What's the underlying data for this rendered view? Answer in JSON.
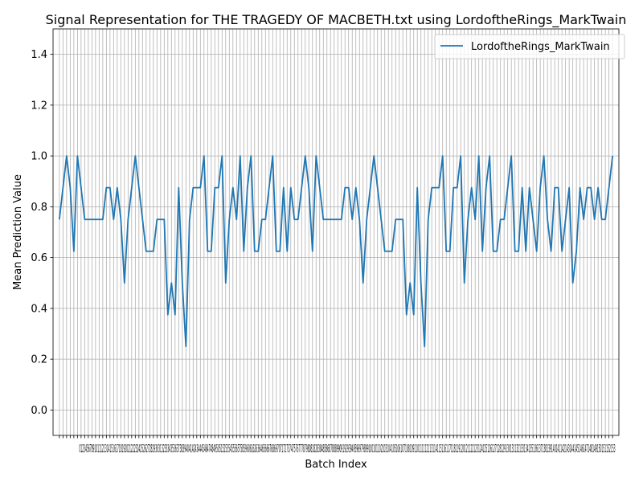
{
  "chart_data": {
    "type": "line",
    "title": "Signal Representation for THE TRAGEDY OF MACBETH.txt using LordoftheRings_MarkTwain",
    "xlabel": "Batch Index",
    "ylabel": "Mean Prediction Value",
    "ylim": [
      -0.1,
      1.5
    ],
    "xlim": [
      -1.75,
      154.75
    ],
    "yticks": [
      "0.0",
      "0.2",
      "0.4",
      "0.6",
      "0.8",
      "1.0",
      "1.2",
      "1.4"
    ],
    "grid": true,
    "legend_position": "top-right",
    "x_tick_label_text": "0123456789101112131415161718192021222324252627282930313233343536373839404142434445464748495051525354555657585960616263646566676869707172737475767778798081828384858687888990919293949596979899100101102103104105106107108109110111112113114115116117118119120121122123124125126127128129130131132133134135136137138139140141142143144145146147148149150151152153",
    "series": [
      {
        "name": "LordoftheRings_MarkTwain",
        "color": "#1f77b4",
        "x_start": 0,
        "values": [
          0.75,
          0.875,
          1.0,
          0.875,
          0.625,
          1.0,
          0.875,
          0.75,
          0.75,
          0.75,
          0.75,
          0.75,
          0.75,
          0.875,
          0.875,
          0.75,
          0.875,
          0.75,
          0.5,
          0.75,
          0.875,
          1.0,
          0.875,
          0.75,
          0.625,
          0.625,
          0.625,
          0.75,
          0.75,
          0.75,
          0.375,
          0.5,
          0.375,
          0.875,
          0.5,
          0.25,
          0.75,
          0.875,
          0.875,
          0.875,
          1.0,
          0.625,
          0.625,
          0.875,
          0.875,
          1.0,
          0.5,
          0.75,
          0.875,
          0.75,
          1.0,
          0.625,
          0.875,
          1.0,
          0.625,
          0.625,
          0.75,
          0.75,
          0.875,
          1.0,
          0.625,
          0.625,
          0.875,
          0.625,
          0.875,
          0.75,
          0.75,
          0.875,
          1.0,
          0.875,
          0.625,
          1.0,
          0.875,
          0.75,
          0.75,
          0.75,
          0.75,
          0.75,
          0.75,
          0.875,
          0.875,
          0.75,
          0.875,
          0.75,
          0.5,
          0.75,
          0.875,
          1.0,
          0.875,
          0.75,
          0.625,
          0.625,
          0.625,
          0.75,
          0.75,
          0.75,
          0.375,
          0.5,
          0.375,
          0.875,
          0.5,
          0.25,
          0.75,
          0.875,
          0.875,
          0.875,
          1.0,
          0.625,
          0.625,
          0.875,
          0.875,
          1.0,
          0.5,
          0.75,
          0.875,
          0.75,
          1.0,
          0.625,
          0.875,
          1.0,
          0.625,
          0.625,
          0.75,
          0.75,
          0.875,
          1.0,
          0.625,
          0.625,
          0.875,
          0.625,
          0.875,
          0.75,
          0.625,
          0.875,
          1.0,
          0.75,
          0.625,
          0.875,
          0.875,
          0.625,
          0.75,
          0.875,
          0.5,
          0.625,
          0.875,
          0.75,
          0.875,
          0.875,
          0.75,
          0.875,
          0.75,
          0.75,
          0.875,
          1.0
        ]
      }
    ]
  }
}
